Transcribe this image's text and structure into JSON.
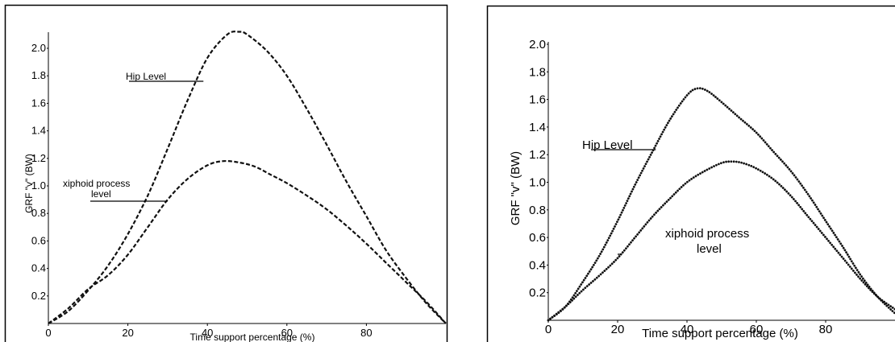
{
  "chart_data": [
    {
      "type": "line",
      "title": "",
      "xlabel": "Time support percentage (%)",
      "ylabel": "GRF \"v\" (BW)",
      "xlim": [
        0,
        100
      ],
      "ylim": [
        0,
        2.2
      ],
      "xticks": [
        "0",
        "20",
        "40",
        "60",
        "80"
      ],
      "yticks": [
        "0.2",
        "0.4",
        "0.6",
        "0.8",
        "1.0",
        "1.2",
        "1.4",
        "1.6",
        "1.8",
        "2.0"
      ],
      "grid": false,
      "line_style": "dashed",
      "series": [
        {
          "name": "Hip Level",
          "x": [
            0,
            5,
            10,
            15,
            20,
            25,
            30,
            35,
            40,
            45,
            48,
            50,
            55,
            60,
            65,
            70,
            75,
            80,
            85,
            90,
            95,
            100
          ],
          "y": [
            0.0,
            0.09,
            0.24,
            0.42,
            0.65,
            0.93,
            1.27,
            1.62,
            1.93,
            2.1,
            2.12,
            2.1,
            1.98,
            1.8,
            1.56,
            1.3,
            1.03,
            0.78,
            0.53,
            0.33,
            0.15,
            0.0
          ]
        },
        {
          "name": "xiphoid process level",
          "x": [
            0,
            5,
            10,
            15,
            20,
            25,
            30,
            35,
            40,
            44,
            48,
            52,
            56,
            60,
            65,
            70,
            75,
            80,
            85,
            90,
            95,
            100
          ],
          "y": [
            0.0,
            0.11,
            0.25,
            0.35,
            0.5,
            0.7,
            0.9,
            1.05,
            1.15,
            1.18,
            1.17,
            1.14,
            1.08,
            1.02,
            0.93,
            0.83,
            0.71,
            0.58,
            0.44,
            0.3,
            0.16,
            0.0
          ]
        }
      ],
      "annotations": [
        {
          "text": "Hip Level",
          "points_to": {
            "series": "Hip Level",
            "x": 39,
            "y": 1.78
          }
        },
        {
          "text": "xiphoid process",
          "text2": "level",
          "points_to": {
            "series": "xiphoid process level",
            "x": 30,
            "y": 0.87
          }
        }
      ]
    },
    {
      "type": "line",
      "title": "",
      "xlabel": "Time support percentage (%)",
      "ylabel": "GRF \"v\" (BW)",
      "xlim": [
        0,
        100
      ],
      "ylim": [
        0,
        2.2
      ],
      "xticks": [
        "0",
        "20",
        "40",
        "60",
        "80"
      ],
      "yticks": [
        "0.2",
        "0.4",
        "0.6",
        "0.8",
        "1.0",
        "1.2",
        "1.4",
        "1.6",
        "1.8",
        "2.0"
      ],
      "grid": false,
      "line_style": "dotted",
      "series": [
        {
          "name": "Hip Level",
          "x": [
            0,
            5,
            10,
            15,
            20,
            25,
            30,
            35,
            40,
            43,
            46,
            50,
            55,
            60,
            65,
            70,
            75,
            80,
            85,
            90,
            95,
            100
          ],
          "y": [
            0.0,
            0.1,
            0.28,
            0.48,
            0.72,
            0.98,
            1.22,
            1.45,
            1.63,
            1.68,
            1.66,
            1.58,
            1.47,
            1.36,
            1.22,
            1.08,
            0.91,
            0.72,
            0.53,
            0.33,
            0.17,
            0.05
          ]
        },
        {
          "name": "xiphoid process level",
          "x": [
            0,
            5,
            10,
            15,
            20,
            25,
            30,
            35,
            40,
            45,
            50,
            53,
            56,
            60,
            65,
            70,
            75,
            80,
            85,
            90,
            95,
            100
          ],
          "y": [
            0.0,
            0.1,
            0.22,
            0.33,
            0.45,
            0.6,
            0.75,
            0.88,
            1.0,
            1.08,
            1.14,
            1.15,
            1.14,
            1.1,
            1.02,
            0.9,
            0.75,
            0.6,
            0.45,
            0.3,
            0.17,
            0.08
          ]
        }
      ],
      "annotations": [
        {
          "text": "Hip Level",
          "points_to": {
            "series": "Hip Level",
            "x": 31,
            "y": 1.28
          }
        },
        {
          "text": "xiphoid process",
          "text2": "level",
          "points_to": {
            "series": "xiphoid process level",
            "x": 20,
            "y": 0.37
          }
        }
      ]
    }
  ]
}
